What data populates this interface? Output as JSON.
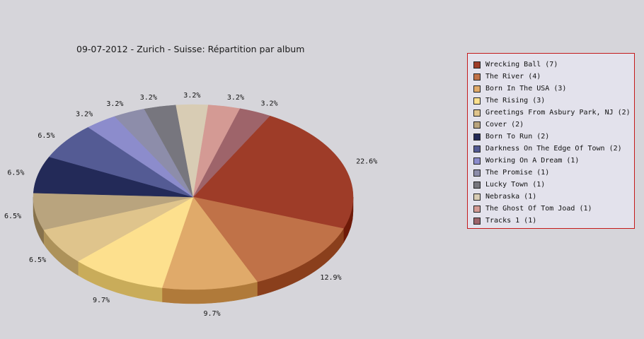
{
  "chart_data": {
    "type": "pie",
    "title": "09-07-2012 - Zurich - Suisse:  Répartition par album",
    "series": [
      {
        "name": "Wrecking Ball",
        "count": 7,
        "percent": 22.6,
        "color": "#9e3c28",
        "side": "#6e1a08",
        "legend": "Wrecking Ball (7)",
        "label": "22.6%"
      },
      {
        "name": "The River",
        "count": 4,
        "percent": 12.9,
        "color": "#c07248",
        "side": "#8a3f1c",
        "legend": "The River (4)",
        "label": "12.9%"
      },
      {
        "name": "Born In The USA",
        "count": 3,
        "percent": 9.7,
        "color": "#e0aa6a",
        "side": "#b07a3a",
        "legend": "Born In The USA (3)",
        "label": "9.7%"
      },
      {
        "name": "The Rising",
        "count": 3,
        "percent": 9.7,
        "color": "#fde08e",
        "side": "#c9ac5a",
        "legend": "The Rising (3)",
        "label": "9.7%"
      },
      {
        "name": "Greetings From Asbury Park, NJ",
        "count": 2,
        "percent": 6.5,
        "color": "#dfc48c",
        "side": "#ad925a",
        "legend": "Greetings From Asbury Park, NJ (2)",
        "label": "6.5%"
      },
      {
        "name": "Cover",
        "count": 2,
        "percent": 6.5,
        "color": "#b9a47e",
        "side": "#87724c",
        "legend": "Cover (2)",
        "label": "6.5%"
      },
      {
        "name": "Born To Run",
        "count": 2,
        "percent": 6.5,
        "color": "#232a58",
        "side": "#111530",
        "legend": "Born To Run (2)",
        "label": "6.5%"
      },
      {
        "name": "Darkness On The Edge Of Town",
        "count": 2,
        "percent": 6.5,
        "color": "#545b94",
        "side": "#323870",
        "legend": "Darkness On The Edge Of Town (2)",
        "label": "6.5%"
      },
      {
        "name": "Working On A Dream",
        "count": 1,
        "percent": 3.2,
        "color": "#8c8ccc",
        "side": "#5e5e9c",
        "legend": "Working On A Dream (1)",
        "label": "3.2%"
      },
      {
        "name": "The Promise",
        "count": 1,
        "percent": 3.2,
        "color": "#8d8daa",
        "side": "#5e5e7a",
        "legend": "The Promise (1)",
        "label": "3.2%"
      },
      {
        "name": "Lucky Town",
        "count": 1,
        "percent": 3.2,
        "color": "#77767e",
        "side": "#4c4b52",
        "legend": "Lucky Town (1)",
        "label": "3.2%"
      },
      {
        "name": "Nebraska",
        "count": 1,
        "percent": 3.2,
        "color": "#d8ccb4",
        "side": "#a89a80",
        "legend": "Nebraska (1)",
        "label": "3.2%"
      },
      {
        "name": "The Ghost Of Tom Joad",
        "count": 1,
        "percent": 3.2,
        "color": "#d49a94",
        "side": "#a26a64",
        "legend": "The Ghost Of Tom Joad (1)",
        "label": "3.2%"
      },
      {
        "name": "Tracks 1",
        "count": 1,
        "percent": 3.2,
        "color": "#9e646a",
        "side": "#6e3a40",
        "legend": "Tracks 1 (1)",
        "label": "3.2%"
      }
    ],
    "legend_position": "right"
  }
}
